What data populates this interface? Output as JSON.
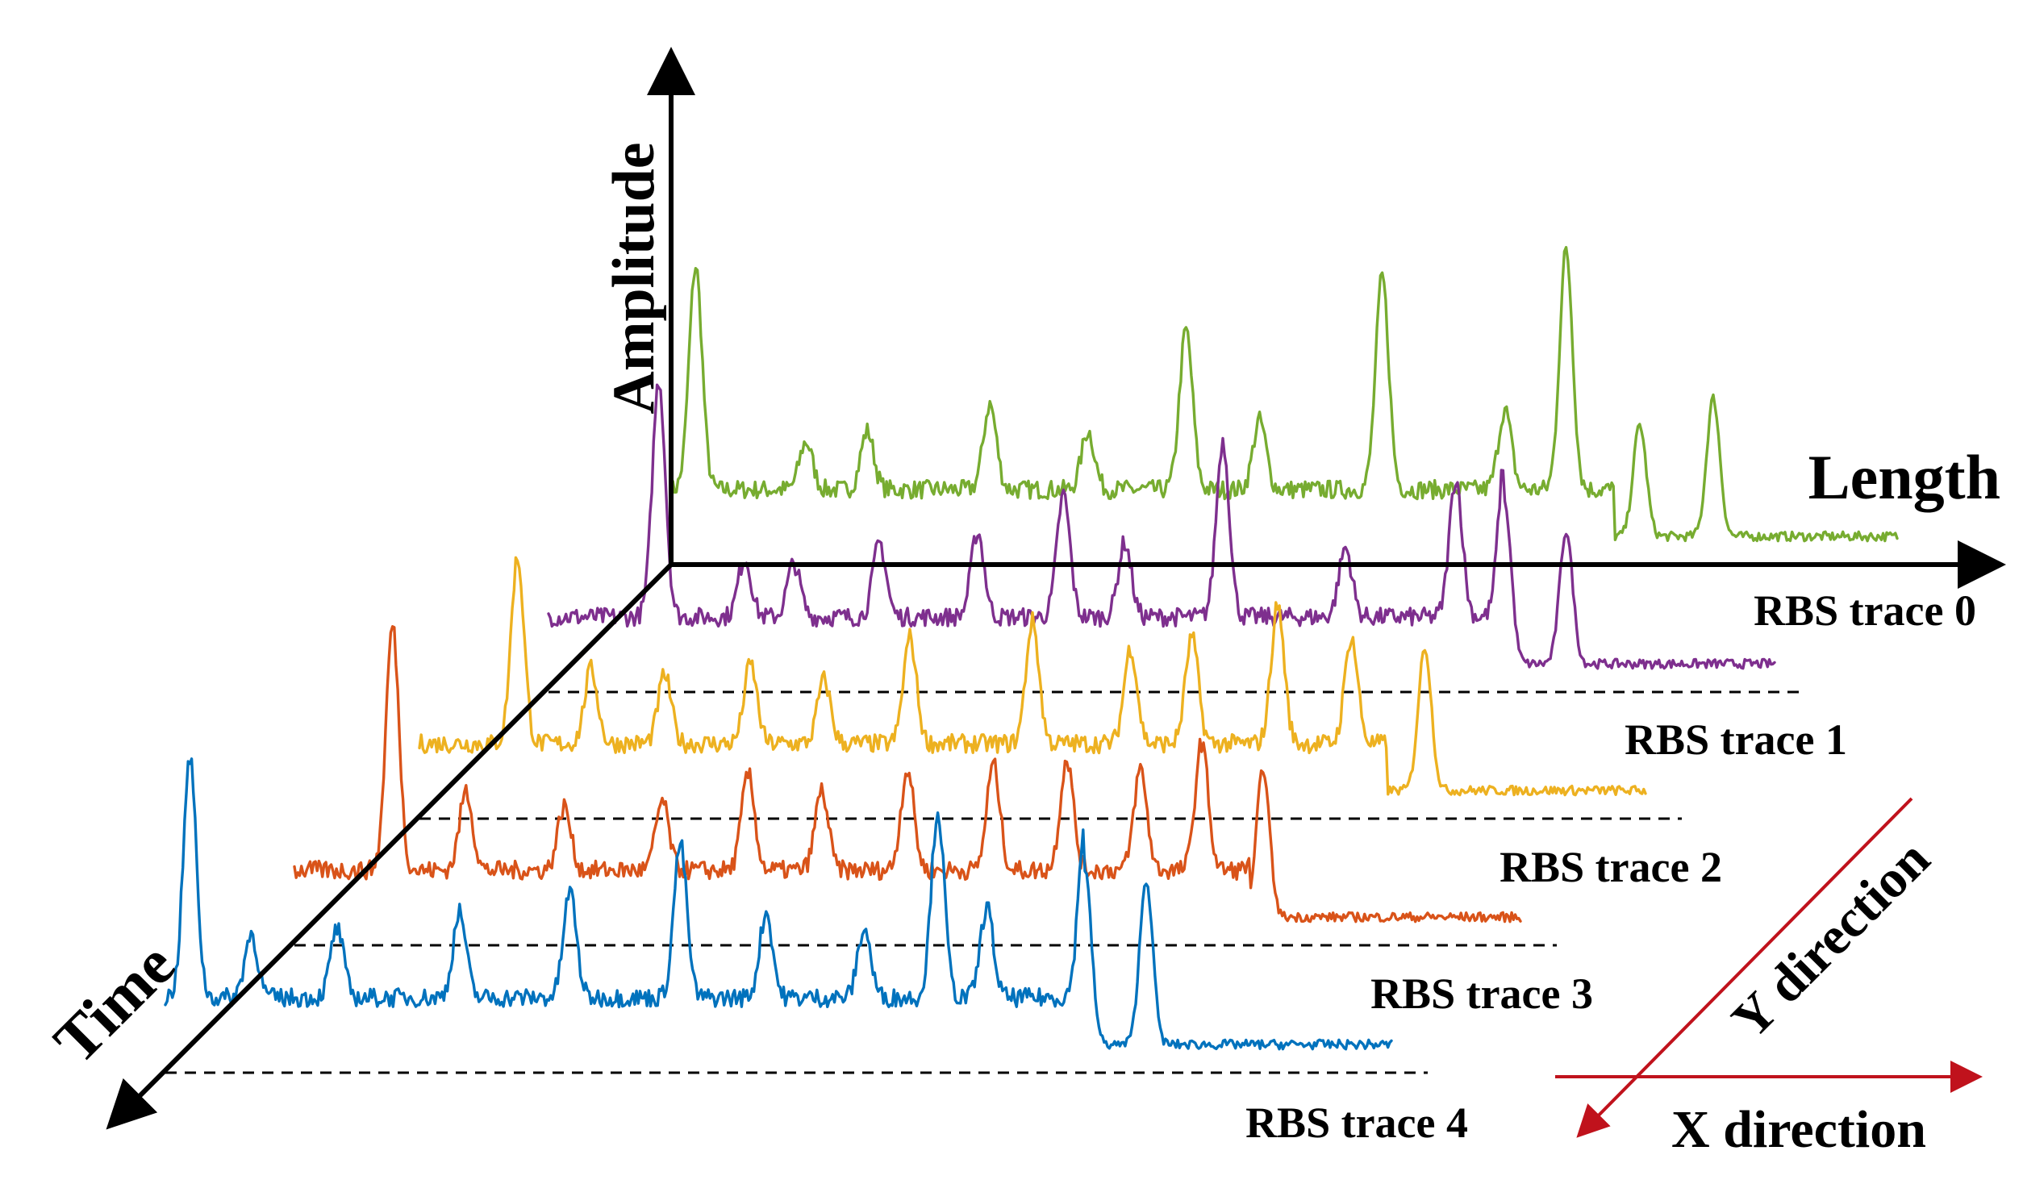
{
  "figure": {
    "axes": {
      "amplitude": "Amplitude",
      "length": "Length",
      "time": "Time"
    },
    "traces": [
      {
        "label": "RBS trace 0",
        "color": "#77ac30"
      },
      {
        "label": "RBS trace 1",
        "color": "#7e2f8e"
      },
      {
        "label": "RBS trace 2",
        "color": "#edb120"
      },
      {
        "label": "RBS trace 3",
        "color": "#d95319"
      },
      {
        "label": "RBS trace 4",
        "color": "#0072bd"
      }
    ],
    "directions": {
      "x_label": "X direction",
      "y_label": "Y direction",
      "color": "#c0121c"
    }
  }
}
